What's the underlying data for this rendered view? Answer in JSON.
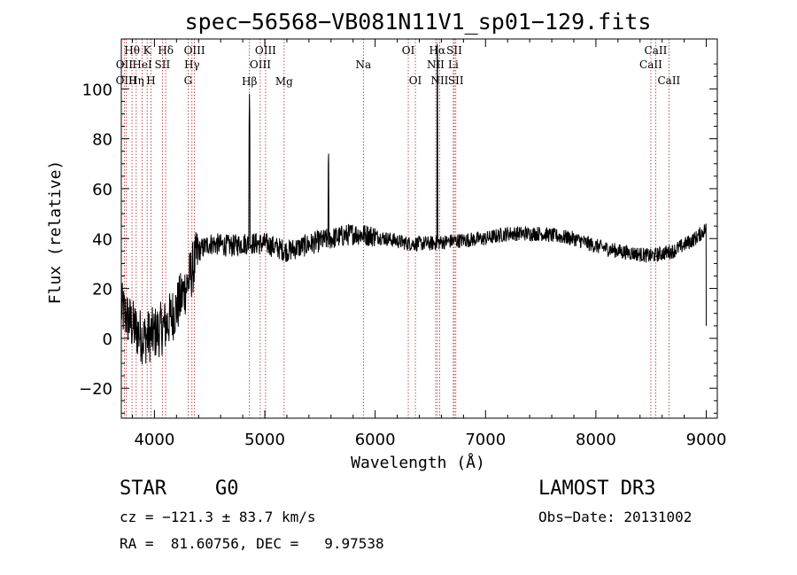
{
  "chart_data": {
    "type": "line",
    "title": "spec−56568−VB081N11V1_sp01−129.fits",
    "xlabel": "Wavelength (Å)",
    "ylabel": "Flux (relative)",
    "xlim": [
      3700,
      9100
    ],
    "ylim": [
      -32,
      120
    ],
    "x_ticks": [
      4000,
      5000,
      6000,
      7000,
      8000,
      9000
    ],
    "y_ticks": [
      -20,
      0,
      20,
      40,
      60,
      80,
      100
    ],
    "grid": false,
    "line_color": "#000000",
    "marker_color": "#b22222",
    "spectral_lines": [
      {
        "label": "Hθ",
        "wavelength": 3797,
        "row": 0
      },
      {
        "label": "OII",
        "wavelength": 3727,
        "row": 1
      },
      {
        "label": "OIII",
        "wavelength": 3745,
        "row": 2
      },
      {
        "label": "K",
        "wavelength": 3934,
        "row": 0
      },
      {
        "label": "HeI",
        "wavelength": 3889,
        "row": 1
      },
      {
        "label": "Hη",
        "wavelength": 3835,
        "row": 2
      },
      {
        "label": "H",
        "wavelength": 3969,
        "row": 2
      },
      {
        "label": "Hδ",
        "wavelength": 4102,
        "row": 0
      },
      {
        "label": "SII",
        "wavelength": 4072,
        "row": 1
      },
      {
        "label": "OIII",
        "wavelength": 4363,
        "row": 0
      },
      {
        "label": "Hγ",
        "wavelength": 4340,
        "row": 1
      },
      {
        "label": "G",
        "wavelength": 4305,
        "row": 2
      },
      {
        "label": "Hβ",
        "wavelength": 4861,
        "row": 3
      },
      {
        "label": "OIII",
        "wavelength": 5007,
        "row": 0
      },
      {
        "label": "OIII",
        "wavelength": 4959,
        "row": 1
      },
      {
        "label": "Mg",
        "wavelength": 5175,
        "row": 3
      },
      {
        "label": "Na",
        "wavelength": 5893,
        "row": 1
      },
      {
        "label": "OI",
        "wavelength": 6300,
        "row": 0
      },
      {
        "label": "OI",
        "wavelength": 6364,
        "row": 2
      },
      {
        "label": "Hα",
        "wavelength": 6563,
        "row": 0
      },
      {
        "label": "NII",
        "wavelength": 6548,
        "row": 1
      },
      {
        "label": "NII",
        "wavelength": 6584,
        "row": 2
      },
      {
        "label": "SII",
        "wavelength": 6717,
        "row": 0
      },
      {
        "label": "Li",
        "wavelength": 6708,
        "row": 1
      },
      {
        "label": "SII",
        "wavelength": 6731,
        "row": 2
      },
      {
        "label": "CaII",
        "wavelength": 8542,
        "row": 0
      },
      {
        "label": "CaII",
        "wavelength": 8498,
        "row": 1
      },
      {
        "label": "CaII",
        "wavelength": 8662,
        "row": 2
      }
    ],
    "continuum": [
      [
        3700,
        12
      ],
      [
        3800,
        5
      ],
      [
        3900,
        0
      ],
      [
        4000,
        2
      ],
      [
        4100,
        5
      ],
      [
        4200,
        12
      ],
      [
        4300,
        22
      ],
      [
        4400,
        35
      ],
      [
        4500,
        38
      ],
      [
        4700,
        37
      ],
      [
        4800,
        38
      ],
      [
        4900,
        38
      ],
      [
        5000,
        38
      ],
      [
        5200,
        35
      ],
      [
        5500,
        39
      ],
      [
        5800,
        42
      ],
      [
        6000,
        41
      ],
      [
        6300,
        38
      ],
      [
        6500,
        38
      ],
      [
        6700,
        39
      ],
      [
        7000,
        40
      ],
      [
        7200,
        42
      ],
      [
        7500,
        42
      ],
      [
        7800,
        40
      ],
      [
        8000,
        37
      ],
      [
        8200,
        35
      ],
      [
        8500,
        33
      ],
      [
        8700,
        35
      ],
      [
        8900,
        40
      ],
      [
        9000,
        44
      ]
    ],
    "emission_features": [
      {
        "wavelength": 4861,
        "peak": 98
      },
      {
        "wavelength": 5577,
        "peak": 78
      },
      {
        "wavelength": 6563,
        "peak": 122
      }
    ]
  },
  "info": {
    "object_class": "STAR",
    "subclass": "G0",
    "survey": "LAMOST DR3",
    "redshift": "cz = −121.3 ± 83.7 km/s",
    "obs_date": "Obs−Date: 20131002",
    "coords": "RA =  81.60756, DEC =   9.97538"
  }
}
